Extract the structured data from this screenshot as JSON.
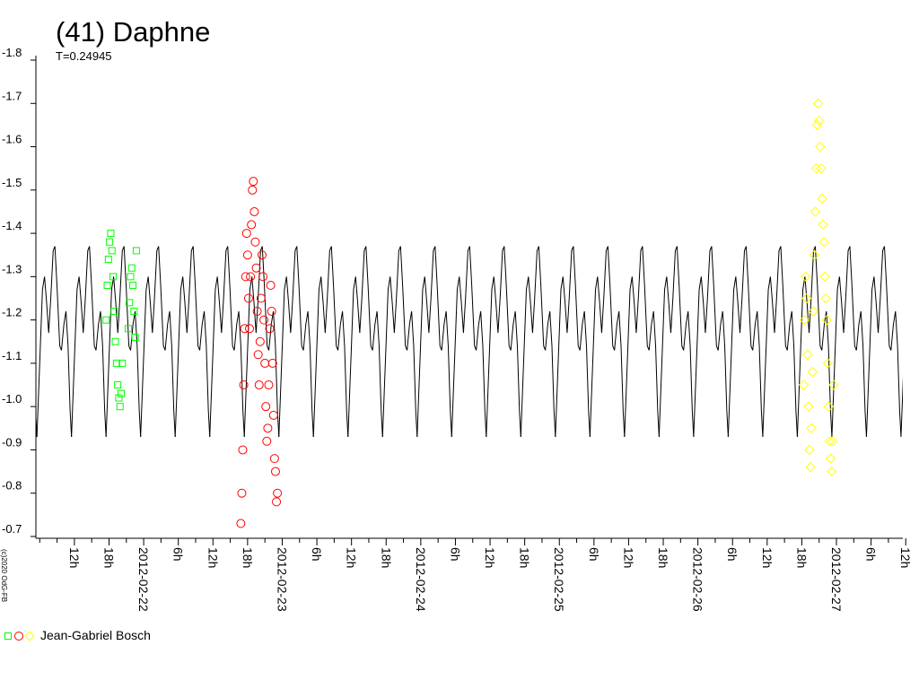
{
  "chart_data": {
    "type": "scatter",
    "title": "(41) Daphne",
    "subtitle": "T=0.24945",
    "copyright": "(c)2020 OdG-FB",
    "legend": {
      "label": "Jean-Gabriel Bosch"
    },
    "ylim": [
      -0.7,
      -1.8
    ],
    "yticks": [
      -1.8,
      -1.7,
      -1.6,
      -1.5,
      -1.4,
      -1.3,
      -1.2,
      -1.1,
      {
        "value": -1.0,
        "label": "-1.0"
      },
      -0.9,
      -0.8,
      -0.7
    ],
    "xlim": [
      "2012-02-21T05:20",
      "2012-02-27T11:30"
    ],
    "xticks": [
      {
        "value": "2012-02-21T12:00",
        "label": "12h"
      },
      {
        "value": "2012-02-21T18:00",
        "label": "18h"
      },
      {
        "value": "2012-02-22T00:00",
        "label": "2012-02-22"
      },
      {
        "value": "2012-02-22T06:00",
        "label": "6h"
      },
      {
        "value": "2012-02-22T12:00",
        "label": "12h"
      },
      {
        "value": "2012-02-22T18:00",
        "label": "18h"
      },
      {
        "value": "2012-02-23T00:00",
        "label": "2012-02-23"
      },
      {
        "value": "2012-02-23T06:00",
        "label": "6h"
      },
      {
        "value": "2012-02-23T12:00",
        "label": "12h"
      },
      {
        "value": "2012-02-23T18:00",
        "label": "18h"
      },
      {
        "value": "2012-02-24T00:00",
        "label": "2012-02-24"
      },
      {
        "value": "2012-02-24T06:00",
        "label": "6h"
      },
      {
        "value": "2012-02-24T12:00",
        "label": "12h"
      },
      {
        "value": "2012-02-24T18:00",
        "label": "18h"
      },
      {
        "value": "2012-02-25T00:00",
        "label": "2012-02-25"
      },
      {
        "value": "2012-02-25T06:00",
        "label": "6h"
      },
      {
        "value": "2012-02-25T12:00",
        "label": "12h"
      },
      {
        "value": "2012-02-25T18:00",
        "label": "18h"
      },
      {
        "value": "2012-02-26T00:00",
        "label": "2012-02-26"
      },
      {
        "value": "2012-02-26T06:00",
        "label": "6h"
      },
      {
        "value": "2012-02-26T12:00",
        "label": "12h"
      },
      {
        "value": "2012-02-26T18:00",
        "label": "18h"
      },
      {
        "value": "2012-02-27T00:00",
        "label": "2012-02-27"
      },
      {
        "value": "2012-02-27T06:00",
        "label": "6h"
      },
      {
        "value": "2012-02-27T12:00",
        "label": "12h"
      }
    ],
    "xminor_ticks": [
      "2012-02-21T06:00",
      "2012-02-21T09:00",
      "2012-02-21T15:00",
      "2012-02-21T21:00",
      "2012-02-22T03:00",
      "2012-02-22T09:00",
      "2012-02-22T15:00",
      "2012-02-22T21:00",
      "2012-02-23T03:00",
      "2012-02-23T09:00",
      "2012-02-23T15:00",
      "2012-02-23T21:00",
      "2012-02-24T03:00",
      "2012-02-24T09:00",
      "2012-02-24T15:00",
      "2012-02-24T21:00",
      "2012-02-25T03:00",
      "2012-02-25T09:00",
      "2012-02-25T15:00",
      "2012-02-25T21:00",
      "2012-02-26T03:00",
      "2012-02-26T09:00",
      "2012-02-26T15:00",
      "2012-02-26T21:00",
      "2012-02-27T03:00",
      "2012-02-27T09:00"
    ],
    "model": {
      "color": "#000000",
      "epoch": "2012-02-21T11:30",
      "period": 0.24945,
      "phase": [
        0,
        0.08,
        0.16,
        0.22,
        0.28,
        0.34,
        0.4,
        0.47,
        0.52,
        0.58,
        0.66,
        0.71,
        0.78,
        0.84,
        0.9,
        0.96
      ],
      "values": [
        -0.93,
        -1.1,
        -1.27,
        -1.3,
        -1.24,
        -1.17,
        -1.25,
        -1.36,
        -1.37,
        -1.28,
        -1.14,
        -1.13,
        -1.19,
        -1.22,
        -1.14,
        -0.99
      ]
    },
    "series": [
      {
        "color": "#00ff00",
        "marker": "square",
        "x": [
          "2012-02-21T17:30",
          "2012-02-21T17:42",
          "2012-02-21T17:54",
          "2012-02-21T18:06",
          "2012-02-21T18:18",
          "2012-02-21T18:30",
          "2012-02-21T18:42",
          "2012-02-21T18:54",
          "2012-02-21T19:06",
          "2012-02-21T19:18",
          "2012-02-21T19:30",
          "2012-02-21T19:42",
          "2012-02-21T19:54",
          "2012-02-21T20:06",
          "2012-02-21T20:18",
          "2012-02-21T21:20",
          "2012-02-21T21:32",
          "2012-02-21T21:44",
          "2012-02-21T21:56",
          "2012-02-21T22:08",
          "2012-02-21T22:20",
          "2012-02-21T22:32",
          "2012-02-21T22:44"
        ],
        "values": [
          -1.2,
          -1.28,
          -1.34,
          -1.38,
          -1.4,
          -1.36,
          -1.3,
          -1.22,
          -1.15,
          -1.1,
          -1.05,
          -1.02,
          -1.0,
          -1.03,
          -1.1,
          -1.18,
          -1.24,
          -1.3,
          -1.32,
          -1.28,
          -1.22,
          -1.16,
          -1.36
        ]
      },
      {
        "color": "#ff0000",
        "marker": "circle",
        "x": [
          "2012-02-22T16:50",
          "2012-02-22T17:00",
          "2012-02-22T17:10",
          "2012-02-22T17:20",
          "2012-02-22T17:30",
          "2012-02-22T17:40",
          "2012-02-22T17:50",
          "2012-02-22T18:00",
          "2012-02-22T18:10",
          "2012-02-22T18:20",
          "2012-02-22T18:30",
          "2012-02-22T18:40",
          "2012-02-22T18:50",
          "2012-02-22T19:00",
          "2012-02-22T19:10",
          "2012-02-22T19:20",
          "2012-02-22T19:30",
          "2012-02-22T19:40",
          "2012-02-22T19:50",
          "2012-02-22T20:00",
          "2012-02-22T20:10",
          "2012-02-22T20:20",
          "2012-02-22T20:30",
          "2012-02-22T20:40",
          "2012-02-22T20:50",
          "2012-02-22T21:00",
          "2012-02-22T21:10",
          "2012-02-22T21:20",
          "2012-02-22T21:30",
          "2012-02-22T21:40",
          "2012-02-22T21:50",
          "2012-02-22T22:00",
          "2012-02-22T22:10",
          "2012-02-22T22:20",
          "2012-02-22T22:30",
          "2012-02-22T22:40",
          "2012-02-22T22:50",
          "2012-02-22T23:00",
          "2012-02-22T23:10"
        ],
        "values": [
          -0.73,
          -0.8,
          -0.9,
          -1.05,
          -1.18,
          -1.3,
          -1.4,
          -1.35,
          -1.25,
          -1.18,
          -1.3,
          -1.42,
          -1.5,
          -1.52,
          -1.45,
          -1.38,
          -1.32,
          -1.22,
          -1.12,
          -1.05,
          -1.15,
          -1.25,
          -1.35,
          -1.3,
          -1.2,
          -1.1,
          -1.0,
          -0.92,
          -0.95,
          -1.05,
          -1.18,
          -1.28,
          -1.22,
          -1.1,
          -0.98,
          -0.88,
          -0.85,
          -0.78,
          -0.8
        ]
      },
      {
        "color": "#ffff00",
        "marker": "diamond",
        "x": [
          "2012-02-26T18:20",
          "2012-02-26T18:30",
          "2012-02-26T18:40",
          "2012-02-26T18:50",
          "2012-02-26T19:00",
          "2012-02-26T19:10",
          "2012-02-26T19:20",
          "2012-02-26T19:30",
          "2012-02-26T19:40",
          "2012-02-26T19:50",
          "2012-02-26T20:00",
          "2012-02-26T20:10",
          "2012-02-26T20:20",
          "2012-02-26T20:30",
          "2012-02-26T20:40",
          "2012-02-26T20:50",
          "2012-02-26T21:00",
          "2012-02-26T21:10",
          "2012-02-26T21:20",
          "2012-02-26T21:30",
          "2012-02-26T21:40",
          "2012-02-26T21:50",
          "2012-02-26T22:00",
          "2012-02-26T22:10",
          "2012-02-26T22:20",
          "2012-02-26T22:30",
          "2012-02-26T22:40",
          "2012-02-26T22:50",
          "2012-02-26T23:00",
          "2012-02-26T23:10",
          "2012-02-26T23:20",
          "2012-02-26T23:30"
        ],
        "values": [
          -1.05,
          -1.2,
          -1.3,
          -1.25,
          -1.12,
          -1.0,
          -0.9,
          -0.86,
          -0.95,
          -1.08,
          -1.22,
          -1.35,
          -1.45,
          -1.55,
          -1.65,
          -1.7,
          -1.66,
          -1.6,
          -1.55,
          -1.48,
          -1.42,
          -1.38,
          -1.3,
          -1.25,
          -1.2,
          -1.1,
          -1.0,
          -0.92,
          -0.88,
          -0.85,
          -0.92,
          -1.05
        ]
      }
    ]
  }
}
